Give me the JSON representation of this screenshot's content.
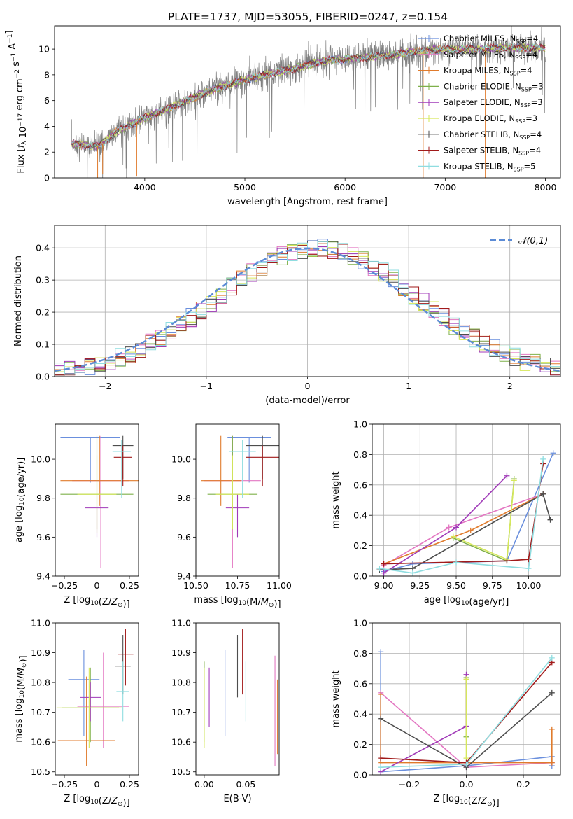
{
  "figure_title": "PLATE=1737, MJD=53055, FIBERID=0247, z=0.154",
  "legend": {
    "entries": [
      {
        "label": "Chabrier MILES, N",
        "sub": "SSP",
        "suffix": "=4",
        "color": "#6a8fdd"
      },
      {
        "label": "Salpeter MILES, N",
        "sub": "SSP",
        "suffix": "=4",
        "color": "#e377c2"
      },
      {
        "label": "Kroupa MILES, N",
        "sub": "SSP",
        "suffix": "=4",
        "color": "#e07b2c"
      },
      {
        "label": "Chabrier ELODIE, N",
        "sub": "SSP",
        "suffix": "=3",
        "color": "#7fb04a"
      },
      {
        "label": "Salpeter ELODIE, N",
        "sub": "SSP",
        "suffix": "=3",
        "color": "#a03ab8"
      },
      {
        "label": "Kroupa ELODIE, N",
        "sub": "SSP",
        "suffix": "=3",
        "color": "#d6e85a"
      },
      {
        "label": "Chabrier STELIB, N",
        "sub": "SSP",
        "suffix": "=4",
        "color": "#4d4d4d"
      },
      {
        "label": "Salpeter STELIB, N",
        "sub": "SSP",
        "suffix": "=4",
        "color": "#a11a1a"
      },
      {
        "label": "Kroupa STELIB, N",
        "sub": "SSP",
        "suffix": "=5",
        "color": "#8fdde0"
      }
    ],
    "normal_label": "𝒩(0,1)"
  },
  "chart_data": [
    {
      "id": "spectrum",
      "type": "line",
      "xlabel": "wavelength [Angstrom, rest frame]",
      "ylabel": "Flux [f_λ 10^-17 erg cm^-2 s^-1 A^-1]",
      "xlim": [
        3100,
        8150
      ],
      "ylim": [
        0,
        11.8
      ],
      "xticks": [
        4000,
        5000,
        6000,
        7000,
        8000
      ],
      "yticks": [
        0,
        2,
        4,
        6,
        8,
        10
      ],
      "data_color": "#808080",
      "continuum": {
        "x": [
          3270,
          3550,
          3700,
          3900,
          4100,
          4300,
          4600,
          4900,
          5200,
          5500,
          5800,
          6100,
          6400,
          6700,
          7000,
          7300,
          7600,
          7900,
          8000
        ],
        "y": [
          2.6,
          2.5,
          3.5,
          4.3,
          5.0,
          5.6,
          6.6,
          7.4,
          8.0,
          8.5,
          9.1,
          9.3,
          9.5,
          9.8,
          10.0,
          10.0,
          10.1,
          10.1,
          10.1
        ]
      },
      "grid": false
    },
    {
      "id": "residuals",
      "type": "histogram",
      "xlabel": "(data-model)/error",
      "ylabel": "Normed distribution",
      "xlim": [
        -2.5,
        2.5
      ],
      "ylim": [
        0,
        0.47
      ],
      "xticks": [
        -2,
        -1,
        0,
        1,
        2
      ],
      "yticks": [
        0.0,
        0.1,
        0.2,
        0.3,
        0.4
      ],
      "bin_width": 0.1,
      "bin_start": -2.5,
      "normal_curve": {
        "mean": 0,
        "sigma": 1,
        "style": "dashed"
      },
      "grid": true,
      "legend_position": "upper right"
    },
    {
      "id": "age_vs_Z",
      "type": "errorbar",
      "xlabel": "Z [log10(Z/Z⊙)]",
      "ylabel": "age [log10(age/yr)]",
      "xlim": [
        -0.32,
        0.32
      ],
      "ylim": [
        9.4,
        10.18
      ],
      "xticks": [
        -0.25,
        0.0,
        0.25
      ],
      "yticks": [
        9.4,
        9.6,
        9.8,
        10.0
      ],
      "series": [
        {
          "x": -0.05,
          "y": 10.11,
          "xerr": 0.23,
          "yerr": 0.0,
          "ylo": 9.88,
          "yhi": 10.11
        },
        {
          "x": 0.03,
          "y": 9.89,
          "xerr": 0.22,
          "ylo": 9.44,
          "yhi": 10.12
        },
        {
          "x": 0.02,
          "y": 9.89,
          "xerr": 0.3,
          "ylo": 9.76,
          "yhi": 10.12
        },
        {
          "x": 0.0,
          "y": 9.82,
          "xerr": 0.28,
          "ylo": 9.64,
          "yhi": 10.12
        },
        {
          "x": 0.0,
          "y": 9.75,
          "xerr": 0.09,
          "ylo": 9.6,
          "yhi": 9.75
        },
        {
          "x": 0.0,
          "y": 9.82,
          "xerr": 0.15,
          "ylo": 9.62,
          "yhi": 10.02
        },
        {
          "x": 0.2,
          "y": 10.07,
          "xerr": 0.08,
          "ylo": 9.9,
          "yhi": 10.12
        },
        {
          "x": 0.2,
          "y": 10.01,
          "xerr": 0.07,
          "ylo": 9.86,
          "yhi": 10.07
        },
        {
          "x": 0.19,
          "y": 10.04,
          "xerr": 0.07,
          "ylo": 9.8,
          "yhi": 10.1
        }
      ]
    },
    {
      "id": "age_vs_mass",
      "type": "errorbar",
      "xlabel": "mass [log10(M/M⊙)]",
      "ylabel": "",
      "xlim": [
        10.5,
        11.0
      ],
      "ylim": [
        9.4,
        10.18
      ],
      "xticks": [
        10.5,
        10.75,
        11.0
      ],
      "xtick_labels": [
        "10.50",
        "10.75",
        "11.00"
      ],
      "yticks": [
        9.4,
        9.6,
        9.8,
        10.0
      ],
      "series": [
        {
          "x": 10.82,
          "y": 10.11,
          "xerr": 0.13,
          "ylo": 9.88,
          "yhi": 10.11
        },
        {
          "x": 10.72,
          "y": 9.89,
          "xerr": 0.17,
          "ylo": 9.44,
          "yhi": 10.12
        },
        {
          "x": 10.65,
          "y": 9.89,
          "xerr": 0.12,
          "ylo": 9.76,
          "yhi": 10.12
        },
        {
          "x": 10.72,
          "y": 9.82,
          "xerr": 0.15,
          "ylo": 9.64,
          "yhi": 10.12
        },
        {
          "x": 10.75,
          "y": 9.75,
          "xerr": 0.07,
          "ylo": 9.6,
          "yhi": 9.82
        },
        {
          "x": 10.72,
          "y": 9.82,
          "xerr": 0.1,
          "ylo": 9.64,
          "yhi": 10.02
        },
        {
          "x": 10.9,
          "y": 10.07,
          "xerr": 0.1,
          "ylo": 9.9,
          "yhi": 10.12
        },
        {
          "x": 10.9,
          "y": 10.01,
          "xerr": 0.1,
          "ylo": 9.86,
          "yhi": 10.07
        },
        {
          "x": 10.78,
          "y": 10.04,
          "xerr": 0.08,
          "ylo": 9.8,
          "yhi": 10.1
        }
      ]
    },
    {
      "id": "weight_vs_age",
      "type": "line",
      "xlabel": "age [log10(age/yr)]",
      "ylabel": "mass weight",
      "xlim": [
        8.92,
        10.22
      ],
      "ylim": [
        0,
        1.0
      ],
      "xticks": [
        9.0,
        9.25,
        9.5,
        9.75,
        10.0
      ],
      "xtick_labels": [
        "9.00",
        "9.25",
        "9.50",
        "9.75",
        "10.00"
      ],
      "yticks": [
        0.0,
        0.2,
        0.4,
        0.6,
        0.8,
        1.0
      ],
      "grid": true,
      "series": [
        {
          "x": [
            9.0,
            9.2,
            9.85,
            10.17
          ],
          "y": [
            0.03,
            0.08,
            0.1,
            0.81
          ]
        },
        {
          "x": [
            9.0,
            9.45,
            10.1
          ],
          "y": [
            0.07,
            0.32,
            0.54
          ]
        },
        {
          "x": [
            9.0,
            9.6,
            10.1
          ],
          "y": [
            0.08,
            0.3,
            0.54
          ]
        },
        {
          "x": [
            9.48,
            9.85,
            9.9
          ],
          "y": [
            0.25,
            0.1,
            0.64
          ]
        },
        {
          "x": [
            9.0,
            9.5,
            9.85
          ],
          "y": [
            0.02,
            0.32,
            0.66
          ]
        },
        {
          "x": [
            9.48,
            9.85,
            9.9
          ],
          "y": [
            0.26,
            0.11,
            0.63
          ]
        },
        {
          "x": [
            8.97,
            9.2,
            10.1,
            10.15
          ],
          "y": [
            0.04,
            0.05,
            0.54,
            0.37
          ]
        },
        {
          "x": [
            9.0,
            9.85,
            10.0,
            10.1
          ],
          "y": [
            0.08,
            0.1,
            0.11,
            0.74
          ]
        },
        {
          "x": [
            8.97,
            9.2,
            9.5,
            10.0,
            10.1
          ],
          "y": [
            0.05,
            0.02,
            0.09,
            0.05,
            0.77
          ]
        }
      ]
    },
    {
      "id": "mass_vs_Z",
      "type": "errorbar",
      "xlabel": "Z [log10(Z/Z⊙)]",
      "ylabel": "mass [log10(M/M⊙)]",
      "xlim": [
        -0.32,
        0.32
      ],
      "ylim": [
        10.49,
        11.0
      ],
      "xticks": [
        -0.25,
        0.0,
        0.25
      ],
      "yticks": [
        10.5,
        10.6,
        10.7,
        10.8,
        10.9,
        11.0
      ],
      "series": [
        {
          "x": -0.1,
          "y": 10.81,
          "xerr": 0.12,
          "ylo": 10.62,
          "yhi": 10.91
        },
        {
          "x": 0.05,
          "y": 10.72,
          "xerr": 0.2,
          "ylo": 10.58,
          "yhi": 10.9
        },
        {
          "x": -0.08,
          "y": 10.605,
          "xerr": 0.22,
          "ylo": 10.52,
          "yhi": 10.82
        },
        {
          "x": -0.05,
          "y": 10.715,
          "xerr": 0.22,
          "ylo": 10.6,
          "yhi": 10.85
        },
        {
          "x": -0.05,
          "y": 10.75,
          "xerr": 0.08,
          "ylo": 10.67,
          "yhi": 10.8
        },
        {
          "x": -0.06,
          "y": 10.715,
          "xerr": 0.25,
          "ylo": 10.58,
          "yhi": 10.85
        },
        {
          "x": 0.2,
          "y": 10.855,
          "xerr": 0.06,
          "ylo": 10.76,
          "yhi": 10.96
        },
        {
          "x": 0.22,
          "y": 10.895,
          "xerr": 0.06,
          "ylo": 10.79,
          "yhi": 10.98
        },
        {
          "x": 0.2,
          "y": 10.77,
          "xerr": 0.05,
          "ylo": 10.67,
          "yhi": 10.87
        }
      ]
    },
    {
      "id": "mass_vs_EBV",
      "type": "errorbar",
      "xlabel": "E(B-V)",
      "ylabel": "",
      "xlim": [
        -0.01,
        0.09
      ],
      "ylim": [
        10.49,
        11.0
      ],
      "xticks": [
        0.0,
        0.05
      ],
      "xtick_labels": [
        "0.00",
        "0.05"
      ],
      "yticks": [
        10.5,
        10.6,
        10.7,
        10.8,
        10.9,
        11.0
      ],
      "series": [
        {
          "x": 0.025,
          "ylo": 10.62,
          "yhi": 10.91
        },
        {
          "x": 0.085,
          "ylo": 10.52,
          "yhi": 10.89
        },
        {
          "x": 0.088,
          "ylo": 10.56,
          "yhi": 10.81
        },
        {
          "x": 0.0,
          "ylo": 10.6,
          "yhi": 10.87
        },
        {
          "x": 0.006,
          "ylo": 10.65,
          "yhi": 10.85
        },
        {
          "x": 0.0,
          "ylo": 10.58,
          "yhi": 10.85
        },
        {
          "x": 0.04,
          "ylo": 10.75,
          "yhi": 10.96
        },
        {
          "x": 0.046,
          "ylo": 10.76,
          "yhi": 10.98
        },
        {
          "x": 0.05,
          "ylo": 10.67,
          "yhi": 10.87
        }
      ]
    },
    {
      "id": "weight_vs_Z",
      "type": "line",
      "xlabel": "Z [log10(Z/Z⊙)]",
      "ylabel": "mass weight",
      "xlim": [
        -0.33,
        0.33
      ],
      "ylim": [
        0,
        1.0
      ],
      "xticks": [
        -0.2,
        0.0,
        0.2
      ],
      "xtick_labels": [
        "−0.2",
        "0.0",
        "0.2"
      ],
      "yticks": [
        0.0,
        0.2,
        0.4,
        0.6,
        0.8,
        1.0
      ],
      "grid": true,
      "series": [
        {
          "x": [
            -0.3,
            -0.3,
            0.0,
            0.3,
            0.3
          ],
          "y": [
            0.81,
            0.02,
            0.06,
            0.12,
            0.06
          ]
        },
        {
          "x": [
            -0.3,
            0.0,
            0.3
          ],
          "y": [
            0.54,
            0.05,
            0.08
          ]
        },
        {
          "x": [
            -0.3,
            -0.3,
            0.3,
            0.3
          ],
          "y": [
            0.53,
            0.08,
            0.08,
            0.3
          ]
        },
        {
          "x": [
            0.0,
            0.0
          ],
          "y": [
            0.25,
            0.64
          ]
        },
        {
          "x": [
            -0.3,
            0.0,
            0.0
          ],
          "y": [
            0.02,
            0.32,
            0.66
          ]
        },
        {
          "x": [
            0.0,
            0.0
          ],
          "y": [
            0.11,
            0.63
          ]
        },
        {
          "x": [
            -0.3,
            0.0,
            0.3
          ],
          "y": [
            0.37,
            0.05,
            0.54
          ]
        },
        {
          "x": [
            -0.3,
            0.0,
            0.3
          ],
          "y": [
            0.11,
            0.08,
            0.74
          ]
        },
        {
          "x": [
            -0.3,
            -0.3,
            0.0,
            0.3
          ],
          "y": [
            0.05,
            0.05,
            0.07,
            0.77
          ]
        }
      ]
    }
  ]
}
